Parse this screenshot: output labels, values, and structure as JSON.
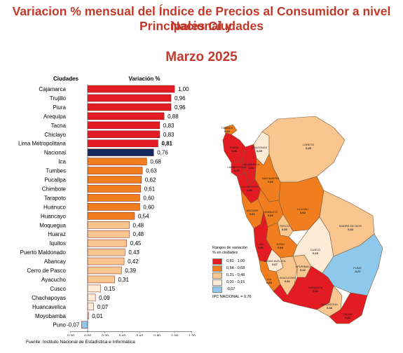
{
  "header": {
    "title_line1": "Variacion % mensual del Índice de Precios al Consumidor a nivel Nacional y",
    "title_line2": "Principales Ciudades",
    "period": "Marzo 2025"
  },
  "chart_data": {
    "type": "bar",
    "orientation": "horizontal",
    "column_headers": {
      "category": "Ciudades",
      "value": "Variación %"
    },
    "categories": [
      "Cajamarca",
      "Trujillo",
      "Piura",
      "Arequipa",
      "Tacna",
      "Chiclayo",
      "Lima Metropolitana",
      "Nacional",
      "Ica",
      "Tumbes",
      "Pucallpa",
      "Chimbote",
      "Tarapoto",
      "Huánuco",
      "Huancayo",
      "Moquegua",
      "Huaraz",
      "Iquitos",
      "Puerto Maldonado",
      "Abancay",
      "Cerro de Pasco",
      "Ayacucho",
      "Cusco",
      "Chachapoyas",
      "Huancavelica",
      "Moyobamba",
      "Puno"
    ],
    "values": [
      1.0,
      0.96,
      0.96,
      0.88,
      0.83,
      0.83,
      0.81,
      0.76,
      0.68,
      0.63,
      0.62,
      0.61,
      0.6,
      0.6,
      0.54,
      0.48,
      0.48,
      0.45,
      0.43,
      0.42,
      0.39,
      0.31,
      0.15,
      0.09,
      0.07,
      0.01,
      -0.07
    ],
    "value_labels": [
      "1,00",
      "0,96",
      "0,96",
      "0,88",
      "0,83",
      "0,83",
      "0,81",
      "0,76",
      "0,68",
      "0,63",
      "0,62",
      "0,61",
      "0,60",
      "0,60",
      "0,54",
      "0,48",
      "0,48",
      "0,45",
      "0,43",
      "0,42",
      "0,39",
      "0,31",
      "0,15",
      "0,09",
      "0,07",
      "0,01",
      "-0,07"
    ],
    "bold_labels": [
      "Lima Metropolitana"
    ],
    "x_ticks": [
      -0.2,
      0,
      0.2,
      0.4,
      0.6,
      0.8,
      1.0,
      1.2
    ],
    "x_tick_labels": [
      "-0,20",
      "0,00",
      "0,20",
      "0,40",
      "0,60",
      "0,80",
      "1,00",
      "1,20"
    ],
    "xlim": [
      -0.2,
      1.2
    ],
    "grid": false,
    "colors": {
      "range_081_100": "#e31b23",
      "range_054_068": "#f07d1e",
      "range_031_048": "#f9c68f",
      "range_001_015": "#fdebd6",
      "negative": "#8ec8ea",
      "nacional": "#132a5e",
      "bar_edge": "#7a1b1b"
    }
  },
  "map": {
    "legend_title_line1": "Rangos de variación",
    "legend_title_line2": "% en ciudades",
    "ranges": [
      {
        "label": "0,81 - 1,00",
        "color": "#e31b23"
      },
      {
        "label": "0,54 - 0,68",
        "color": "#f07d1e"
      },
      {
        "label": "0,31 - 0,48",
        "color": "#f9c68f"
      },
      {
        "label": "0,01 - 0,15",
        "color": "#fdebd6"
      },
      {
        "label": "-0,07",
        "color": "#8ec8ea"
      }
    ],
    "ipc_nacional": "IPC NACIONAL =  0,76",
    "regions": [
      {
        "name": "TUMBES",
        "value": "0,63"
      },
      {
        "name": "PIURA",
        "value": "0,96"
      },
      {
        "name": "LAMBAYEQUE",
        "value": "0,83"
      },
      {
        "name": "CAJAMARCA",
        "value": "1,00"
      },
      {
        "name": "AMAZONAS",
        "value": "0,09"
      },
      {
        "name": "LORETO",
        "value": "0,45"
      },
      {
        "name": "SAN MARTIN",
        "value": "0,60"
      },
      {
        "name": "LA LIBERTAD",
        "value": "0,96"
      },
      {
        "name": "ANCASH",
        "value": "0,61"
      },
      {
        "name": "HUANUCO",
        "value": "0,60"
      },
      {
        "name": "UCAYALI",
        "value": "0,62"
      },
      {
        "name": "PASCO",
        "value": "0,39"
      },
      {
        "name": "JUNIN",
        "value": "0,54"
      },
      {
        "name": "LIMA",
        "value": "0,81"
      },
      {
        "name": "HUANCAVELICA",
        "value": "0,07"
      },
      {
        "name": "ICA",
        "value": "0,68"
      },
      {
        "name": "AYACUCHO",
        "value": "0,31"
      },
      {
        "name": "APURIMAC",
        "value": "0,42"
      },
      {
        "name": "CUSCO",
        "value": "0,15"
      },
      {
        "name": "MADRE DE DIOS",
        "value": "0,43"
      },
      {
        "name": "PUNO",
        "value": "-0,07"
      },
      {
        "name": "AREQUIPA",
        "value": "0,88"
      },
      {
        "name": "MOQUEGUA",
        "value": "0,48"
      },
      {
        "name": "TACNA",
        "value": "0,83"
      }
    ]
  },
  "source": "Fuente: Instituto Nacional de Estadística e Informática"
}
